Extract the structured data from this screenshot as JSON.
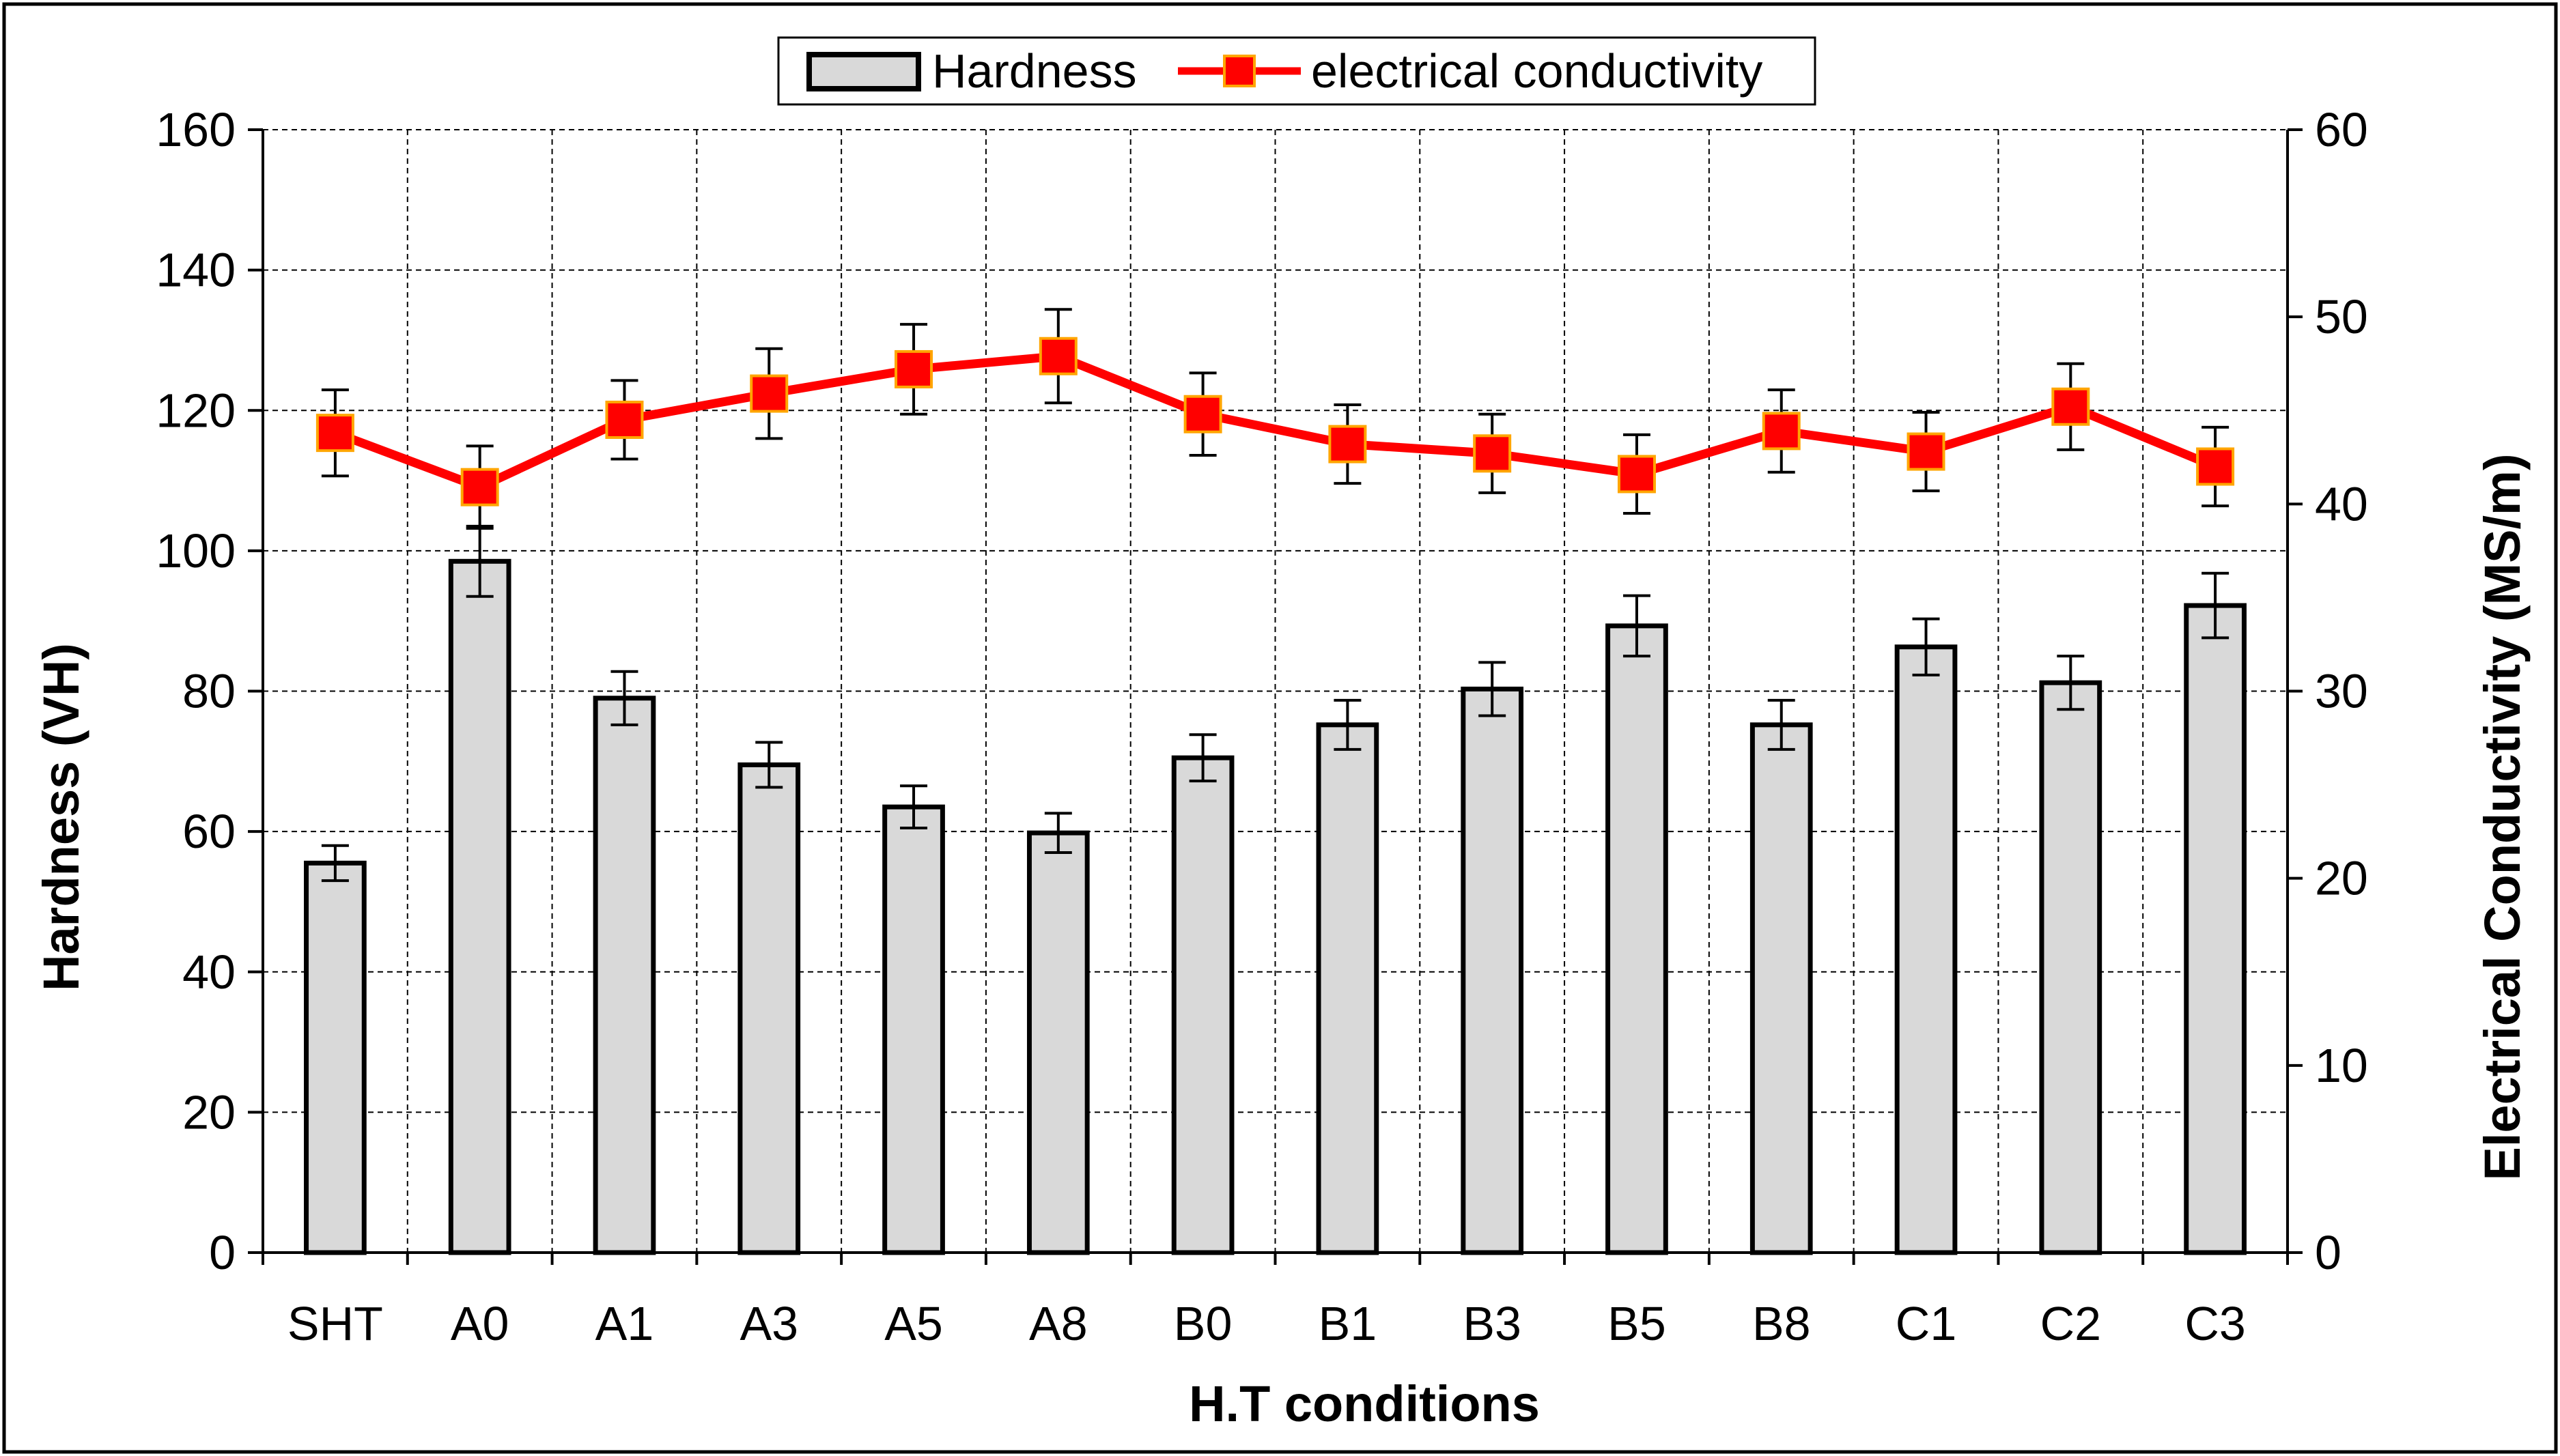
{
  "chart_data": {
    "type": "bar",
    "title": "",
    "xlabel": "H.T conditions",
    "ylabel": "Hardness (VH)",
    "y2label": "Electrical Conductivity (MS/m)",
    "categories": [
      "SHT",
      "A0",
      "A1",
      "A3",
      "A5",
      "A8",
      "B0",
      "B1",
      "B3",
      "B5",
      "B8",
      "C1",
      "C2",
      "C3"
    ],
    "ylim": [
      0,
      160
    ],
    "yticks": [
      0,
      20,
      40,
      60,
      80,
      100,
      120,
      140,
      160
    ],
    "y2lim": [
      0,
      60
    ],
    "y2ticks": [
      0,
      10,
      20,
      30,
      40,
      50,
      60
    ],
    "grid": true,
    "legend_position": "top-center",
    "series": [
      {
        "name": "Hardness",
        "kind": "bar",
        "axis": "left",
        "color": "#d9d9d9",
        "values": [
          55.5,
          98.5,
          79,
          69.5,
          63.5,
          59.8,
          70.5,
          75.2,
          80.3,
          89.3,
          75.2,
          86.3,
          81.2,
          92.2
        ],
        "error": [
          2.5,
          5,
          3.8,
          3.2,
          3,
          2.8,
          3.3,
          3.5,
          3.8,
          4.3,
          3.5,
          4,
          3.8,
          4.6
        ]
      },
      {
        "name": "electrical conductivity",
        "kind": "line",
        "axis": "right",
        "color": "#ff0000",
        "marker_color": "#ff0000",
        "marker_edge": "#ffa500",
        "values": [
          43.8,
          40.9,
          44.5,
          45.9,
          47.2,
          47.9,
          44.8,
          43.2,
          42.7,
          41.6,
          43.9,
          42.8,
          45.2,
          42.0
        ],
        "error": [
          2.3,
          2.2,
          2.1,
          2.4,
          2.4,
          2.5,
          2.2,
          2.1,
          2.1,
          2.1,
          2.2,
          2.1,
          2.3,
          2.1
        ]
      }
    ]
  }
}
